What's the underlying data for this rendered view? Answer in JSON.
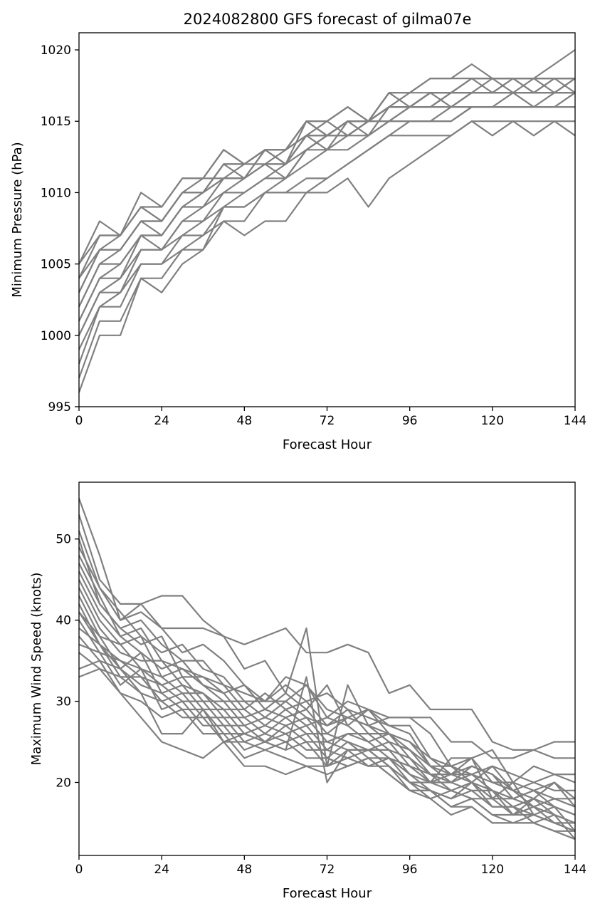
{
  "title": "2024082800 GFS forecast of gilma07e",
  "line_color": "#808080",
  "chart_data": [
    {
      "type": "line",
      "xlabel": "Forecast Hour",
      "ylabel": "Minimum Pressure (hPa)",
      "xlim": [
        0,
        144
      ],
      "ylim": [
        995,
        1021.2
      ],
      "xticks": [
        0,
        24,
        48,
        72,
        96,
        120,
        144
      ],
      "xtick_labels": [
        "0",
        "24",
        "48",
        "72",
        "96",
        "120",
        "144"
      ],
      "yticks": [
        995,
        1000,
        1005,
        1010,
        1015,
        1020
      ],
      "ytick_labels": [
        "995",
        "1000",
        "1005",
        "1010",
        "1015",
        "1020"
      ],
      "grid": false,
      "x": [
        0,
        6,
        12,
        18,
        24,
        30,
        36,
        42,
        48,
        54,
        60,
        66,
        72,
        78,
        84,
        90,
        96,
        102,
        108,
        114,
        120,
        126,
        132,
        138,
        144
      ],
      "series": [
        {
          "values": [
            996,
            1000,
            1000,
            1004,
            1004,
            1006,
            1006,
            1009,
            1009,
            1010,
            1010,
            1011,
            1011,
            1012,
            1013,
            1014,
            1014,
            1014,
            1014,
            1015,
            1015,
            1015,
            1015,
            1015,
            1014
          ]
        },
        {
          "values": [
            997,
            1001,
            1001,
            1004,
            1003,
            1005,
            1006,
            1008,
            1008,
            1010,
            1010,
            1010,
            1010,
            1011,
            1009,
            1011,
            1012,
            1013,
            1014,
            1015,
            1014,
            1015,
            1014,
            1015,
            1015
          ]
        },
        {
          "values": [
            998,
            1002,
            1002,
            1005,
            1005,
            1006,
            1007,
            1008,
            1007,
            1008,
            1008,
            1010,
            1011,
            1012,
            1013,
            1014,
            1015,
            1015,
            1015,
            1016,
            1016,
            1016,
            1016,
            1016,
            1016
          ]
        },
        {
          "values": [
            999,
            1002,
            1003,
            1005,
            1005,
            1007,
            1007,
            1009,
            1009,
            1010,
            1011,
            1012,
            1013,
            1013,
            1014,
            1015,
            1015,
            1015,
            1015,
            1016,
            1016,
            1016,
            1016,
            1016,
            1016
          ]
        },
        {
          "values": [
            1000,
            1003,
            1003,
            1006,
            1006,
            1007,
            1008,
            1009,
            1010,
            1011,
            1011,
            1013,
            1013,
            1014,
            1014,
            1015,
            1015,
            1015,
            1016,
            1016,
            1016,
            1016,
            1016,
            1016,
            1017
          ]
        },
        {
          "values": [
            1000,
            1003,
            1004,
            1006,
            1006,
            1008,
            1008,
            1010,
            1010,
            1011,
            1012,
            1013,
            1014,
            1014,
            1015,
            1015,
            1016,
            1016,
            1016,
            1016,
            1016,
            1017,
            1016,
            1017,
            1017
          ]
        },
        {
          "values": [
            1001,
            1004,
            1004,
            1007,
            1006,
            1008,
            1009,
            1010,
            1011,
            1012,
            1011,
            1013,
            1014,
            1014,
            1015,
            1015,
            1016,
            1016,
            1016,
            1017,
            1017,
            1017,
            1017,
            1017,
            1017
          ]
        },
        {
          "values": [
            1001,
            1004,
            1005,
            1007,
            1007,
            1009,
            1009,
            1011,
            1011,
            1012,
            1012,
            1014,
            1014,
            1015,
            1015,
            1016,
            1016,
            1016,
            1017,
            1017,
            1017,
            1017,
            1017,
            1017,
            1018
          ]
        },
        {
          "values": [
            1002,
            1005,
            1005,
            1007,
            1007,
            1009,
            1010,
            1011,
            1011,
            1013,
            1012,
            1014,
            1014,
            1015,
            1015,
            1016,
            1016,
            1017,
            1017,
            1017,
            1017,
            1018,
            1017,
            1018,
            1018
          ]
        },
        {
          "values": [
            1002,
            1005,
            1006,
            1008,
            1007,
            1009,
            1010,
            1011,
            1012,
            1012,
            1013,
            1014,
            1014,
            1015,
            1014,
            1016,
            1016,
            1017,
            1016,
            1017,
            1017,
            1017,
            1017,
            1017,
            1017
          ]
        },
        {
          "values": [
            1003,
            1006,
            1006,
            1008,
            1008,
            1010,
            1010,
            1012,
            1011,
            1013,
            1013,
            1014,
            1013,
            1015,
            1015,
            1016,
            1016,
            1016,
            1017,
            1017,
            1018,
            1017,
            1018,
            1017,
            1018
          ]
        },
        {
          "values": [
            1003,
            1006,
            1006,
            1008,
            1008,
            1010,
            1010,
            1012,
            1012,
            1013,
            1012,
            1015,
            1014,
            1015,
            1015,
            1016,
            1016,
            1017,
            1017,
            1018,
            1017,
            1018,
            1017,
            1018,
            1018
          ]
        },
        {
          "values": [
            1004,
            1006,
            1007,
            1009,
            1008,
            1010,
            1011,
            1011,
            1011,
            1012,
            1012,
            1014,
            1015,
            1014,
            1015,
            1016,
            1017,
            1017,
            1017,
            1018,
            1018,
            1018,
            1018,
            1018,
            1018
          ]
        },
        {
          "values": [
            1004,
            1007,
            1007,
            1009,
            1008,
            1010,
            1010,
            1012,
            1012,
            1013,
            1013,
            1015,
            1014,
            1015,
            1015,
            1017,
            1016,
            1017,
            1017,
            1018,
            1018,
            1018,
            1018,
            1018,
            1017
          ]
        },
        {
          "values": [
            1005,
            1007,
            1007,
            1009,
            1009,
            1011,
            1011,
            1013,
            1012,
            1013,
            1013,
            1015,
            1015,
            1016,
            1015,
            1017,
            1017,
            1018,
            1018,
            1018,
            1018,
            1018,
            1018,
            1019,
            1020
          ]
        },
        {
          "values": [
            1005,
            1008,
            1007,
            1010,
            1009,
            1011,
            1011,
            1013,
            1012,
            1013,
            1013,
            1015,
            1015,
            1016,
            1015,
            1017,
            1017,
            1018,
            1018,
            1019,
            1018,
            1018,
            1018,
            1018,
            1018
          ]
        }
      ]
    },
    {
      "type": "line",
      "xlabel": "Forecast Hour",
      "ylabel": "Maximum Wind Speed (knots)",
      "xlim": [
        0,
        144
      ],
      "ylim": [
        11,
        57
      ],
      "xticks": [
        0,
        24,
        48,
        72,
        96,
        120,
        144
      ],
      "xtick_labels": [
        "0",
        "24",
        "48",
        "72",
        "96",
        "120",
        "144"
      ],
      "yticks": [
        20,
        30,
        40,
        50
      ],
      "ytick_labels": [
        "20",
        "30",
        "40",
        "50"
      ],
      "grid": false,
      "x": [
        0,
        6,
        12,
        18,
        24,
        30,
        36,
        42,
        48,
        54,
        60,
        66,
        72,
        78,
        84,
        90,
        96,
        102,
        108,
        114,
        120,
        126,
        132,
        138,
        144
      ],
      "series": [
        {
          "values": [
            55,
            48,
            40,
            42,
            43,
            43,
            40,
            38,
            37,
            38,
            39,
            36,
            36,
            37,
            36,
            31,
            32,
            29,
            29,
            29,
            25,
            24,
            24,
            23,
            23
          ]
        },
        {
          "values": [
            53,
            45,
            42,
            42,
            39,
            39,
            39,
            38,
            34,
            35,
            31,
            39,
            22,
            32,
            27,
            28,
            28,
            28,
            25,
            25,
            23,
            23,
            24,
            25,
            25
          ]
        },
        {
          "values": [
            51,
            44,
            40,
            41,
            39,
            36,
            37,
            35,
            32,
            30,
            33,
            32,
            29,
            28,
            29,
            28,
            28,
            26,
            22,
            23,
            24,
            20,
            22,
            21,
            21
          ]
        },
        {
          "values": [
            50,
            42,
            39,
            40,
            37,
            35,
            35,
            32,
            31,
            30,
            30,
            32,
            28,
            30,
            29,
            27,
            27,
            23,
            22,
            21,
            22,
            21,
            20,
            21,
            20
          ]
        },
        {
          "values": [
            49,
            44,
            41,
            38,
            36,
            37,
            34,
            33,
            30,
            30,
            32,
            30,
            31,
            29,
            28,
            27,
            26,
            22,
            21,
            22,
            21,
            19,
            20,
            19,
            19
          ]
        },
        {
          "values": [
            48,
            43,
            38,
            39,
            35,
            34,
            33,
            31,
            32,
            29,
            31,
            29,
            32,
            27,
            29,
            26,
            25,
            23,
            21,
            23,
            20,
            20,
            19,
            20,
            18
          ]
        },
        {
          "values": [
            47,
            42,
            39,
            37,
            38,
            33,
            33,
            32,
            29,
            31,
            29,
            30,
            27,
            28,
            27,
            26,
            24,
            22,
            22,
            20,
            22,
            19,
            18,
            20,
            17
          ]
        },
        {
          "values": [
            46,
            41,
            38,
            36,
            34,
            35,
            32,
            30,
            30,
            28,
            30,
            28,
            27,
            29,
            26,
            26,
            25,
            22,
            20,
            22,
            21,
            18,
            19,
            18,
            18
          ]
        },
        {
          "values": [
            45,
            40,
            37,
            38,
            33,
            34,
            32,
            31,
            28,
            29,
            28,
            29,
            26,
            28,
            27,
            25,
            24,
            21,
            21,
            21,
            20,
            19,
            17,
            18,
            17
          ]
        },
        {
          "values": [
            44,
            39,
            36,
            35,
            35,
            32,
            31,
            29,
            29,
            27,
            29,
            27,
            28,
            27,
            25,
            26,
            23,
            21,
            20,
            21,
            19,
            18,
            19,
            17,
            16
          ]
        },
        {
          "values": [
            43,
            38,
            37,
            34,
            32,
            33,
            30,
            30,
            27,
            28,
            27,
            28,
            25,
            26,
            26,
            24,
            23,
            20,
            21,
            20,
            19,
            17,
            18,
            17,
            16
          ]
        },
        {
          "values": [
            42,
            37,
            35,
            34,
            33,
            31,
            31,
            28,
            28,
            26,
            28,
            26,
            26,
            25,
            24,
            25,
            22,
            21,
            19,
            20,
            18,
            18,
            17,
            16,
            15
          ]
        },
        {
          "values": [
            41,
            38,
            34,
            36,
            31,
            32,
            29,
            29,
            26,
            27,
            26,
            27,
            24,
            26,
            25,
            23,
            22,
            20,
            20,
            19,
            19,
            16,
            18,
            16,
            15
          ]
        },
        {
          "values": [
            40,
            36,
            35,
            33,
            32,
            30,
            30,
            27,
            27,
            25,
            27,
            25,
            25,
            24,
            24,
            24,
            21,
            19,
            18,
            20,
            17,
            17,
            16,
            17,
            14
          ]
        },
        {
          "values": [
            39,
            37,
            33,
            33,
            30,
            31,
            28,
            28,
            25,
            26,
            25,
            26,
            23,
            25,
            23,
            23,
            21,
            20,
            19,
            18,
            18,
            16,
            17,
            15,
            14
          ]
        },
        {
          "values": [
            38,
            35,
            34,
            32,
            31,
            29,
            29,
            26,
            26,
            25,
            26,
            24,
            24,
            23,
            24,
            22,
            20,
            19,
            18,
            19,
            17,
            17,
            15,
            16,
            13
          ]
        },
        {
          "values": [
            37,
            36,
            32,
            34,
            29,
            30,
            27,
            27,
            24,
            25,
            24,
            25,
            22,
            24,
            22,
            23,
            20,
            18,
            19,
            18,
            16,
            16,
            16,
            15,
            14
          ]
        },
        {
          "values": [
            36,
            34,
            33,
            31,
            30,
            28,
            28,
            25,
            25,
            24,
            25,
            23,
            23,
            22,
            23,
            21,
            19,
            19,
            17,
            18,
            16,
            15,
            16,
            15,
            15
          ]
        },
        {
          "values": [
            34,
            35,
            31,
            30,
            28,
            29,
            26,
            26,
            23,
            24,
            23,
            22,
            22,
            23,
            22,
            22,
            19,
            18,
            16,
            17,
            15,
            15,
            15,
            14,
            14
          ]
        },
        {
          "values": [
            33,
            34,
            31,
            28,
            25,
            24,
            23,
            25,
            22,
            22,
            21,
            22,
            21,
            22,
            23,
            21,
            19,
            19,
            17,
            17,
            15,
            15,
            15,
            14,
            13
          ]
        },
        {
          "values": [
            41,
            37,
            34,
            31,
            26,
            26,
            29,
            25,
            26,
            25,
            24,
            33,
            20,
            24,
            24,
            22,
            20,
            20,
            23,
            23,
            18,
            20,
            16,
            null,
            null
          ]
        }
      ]
    }
  ]
}
